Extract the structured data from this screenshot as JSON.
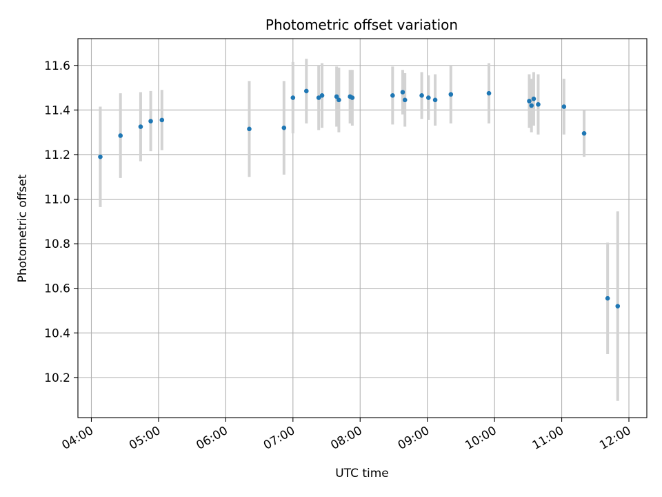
{
  "chart_data": {
    "type": "scatter",
    "title": "Photometric offset variation",
    "xlabel": "UTC time",
    "ylabel": "Photometric offset",
    "x_axis": "time",
    "xlim": [
      "03:48",
      "12:16"
    ],
    "ylim": [
      10.02,
      11.72
    ],
    "xticks": [
      "04:00",
      "05:00",
      "06:00",
      "07:00",
      "08:00",
      "09:00",
      "10:00",
      "11:00",
      "12:00"
    ],
    "yticks": [
      10.2,
      10.4,
      10.6,
      10.8,
      11.0,
      11.2,
      11.4,
      11.6
    ],
    "grid": true,
    "legend": "none",
    "colors": {
      "point": "#1f77b4",
      "errorbar": "#d3d3d3",
      "grid": "#b0b0b0"
    },
    "points": [
      {
        "x": "04:08",
        "y": 11.19,
        "err": 0.225
      },
      {
        "x": "04:26",
        "y": 11.285,
        "err": 0.19
      },
      {
        "x": "04:44",
        "y": 11.325,
        "err": 0.155
      },
      {
        "x": "04:53",
        "y": 11.35,
        "err": 0.135
      },
      {
        "x": "05:03",
        "y": 11.355,
        "err": 0.135
      },
      {
        "x": "06:21",
        "y": 11.315,
        "err": 0.215
      },
      {
        "x": "06:52",
        "y": 11.32,
        "err": 0.21
      },
      {
        "x": "07:00",
        "y": 11.455,
        "err": 0.16
      },
      {
        "x": "07:12",
        "y": 11.485,
        "err": 0.145
      },
      {
        "x": "07:23",
        "y": 11.455,
        "err": 0.145
      },
      {
        "x": "07:26",
        "y": 11.465,
        "err": 0.145
      },
      {
        "x": "07:39",
        "y": 11.46,
        "err": 0.135
      },
      {
        "x": "07:41",
        "y": 11.445,
        "err": 0.145
      },
      {
        "x": "07:51",
        "y": 11.46,
        "err": 0.12
      },
      {
        "x": "07:53",
        "y": 11.455,
        "err": 0.125
      },
      {
        "x": "08:29",
        "y": 11.465,
        "err": 0.13
      },
      {
        "x": "08:38",
        "y": 11.48,
        "err": 0.1
      },
      {
        "x": "08:40",
        "y": 11.445,
        "err": 0.12
      },
      {
        "x": "08:55",
        "y": 11.465,
        "err": 0.105
      },
      {
        "x": "09:01",
        "y": 11.455,
        "err": 0.1
      },
      {
        "x": "09:07",
        "y": 11.445,
        "err": 0.115
      },
      {
        "x": "09:21",
        "y": 11.47,
        "err": 0.13
      },
      {
        "x": "09:55",
        "y": 11.475,
        "err": 0.135
      },
      {
        "x": "10:31",
        "y": 11.44,
        "err": 0.12
      },
      {
        "x": "10:33",
        "y": 11.42,
        "err": 0.12
      },
      {
        "x": "10:35",
        "y": 11.45,
        "err": 0.12
      },
      {
        "x": "10:39",
        "y": 11.425,
        "err": 0.135
      },
      {
        "x": "11:02",
        "y": 11.415,
        "err": 0.125
      },
      {
        "x": "11:20",
        "y": 11.295,
        "err": 0.105
      },
      {
        "x": "11:41",
        "y": 10.555,
        "err": 0.25
      },
      {
        "x": "11:50",
        "y": 10.52,
        "err": 0.425
      }
    ]
  }
}
